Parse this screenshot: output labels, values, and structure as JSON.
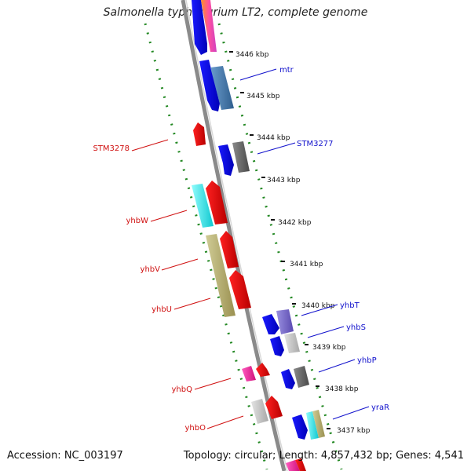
{
  "title": "Salmonella typhimurium LT2, complete genome",
  "accession": "Accession: NC_003197",
  "summary": "Topology: circular; Length: 4,857,432 bp; Genes: 4,541",
  "ticks": [
    "3437 kbp",
    "3438 kbp",
    "3439 kbp",
    "3440 kbp",
    "3441 kbp",
    "3442 kbp",
    "3443 kbp",
    "3444 kbp",
    "3445 kbp",
    "3446 kbp"
  ],
  "forward_labels": [
    "mtr",
    "STM3277",
    "yhbT",
    "yhbS",
    "yhbP",
    "yraR"
  ],
  "reverse_labels": [
    "STM3278",
    "yhbW",
    "yhbV",
    "yhbU",
    "yhbQ",
    "yhbO"
  ],
  "colors": {
    "forward_label": "#1010cc",
    "reverse_label": "#d01010",
    "backbone": "#8a8a8a",
    "dots": "#228822"
  }
}
